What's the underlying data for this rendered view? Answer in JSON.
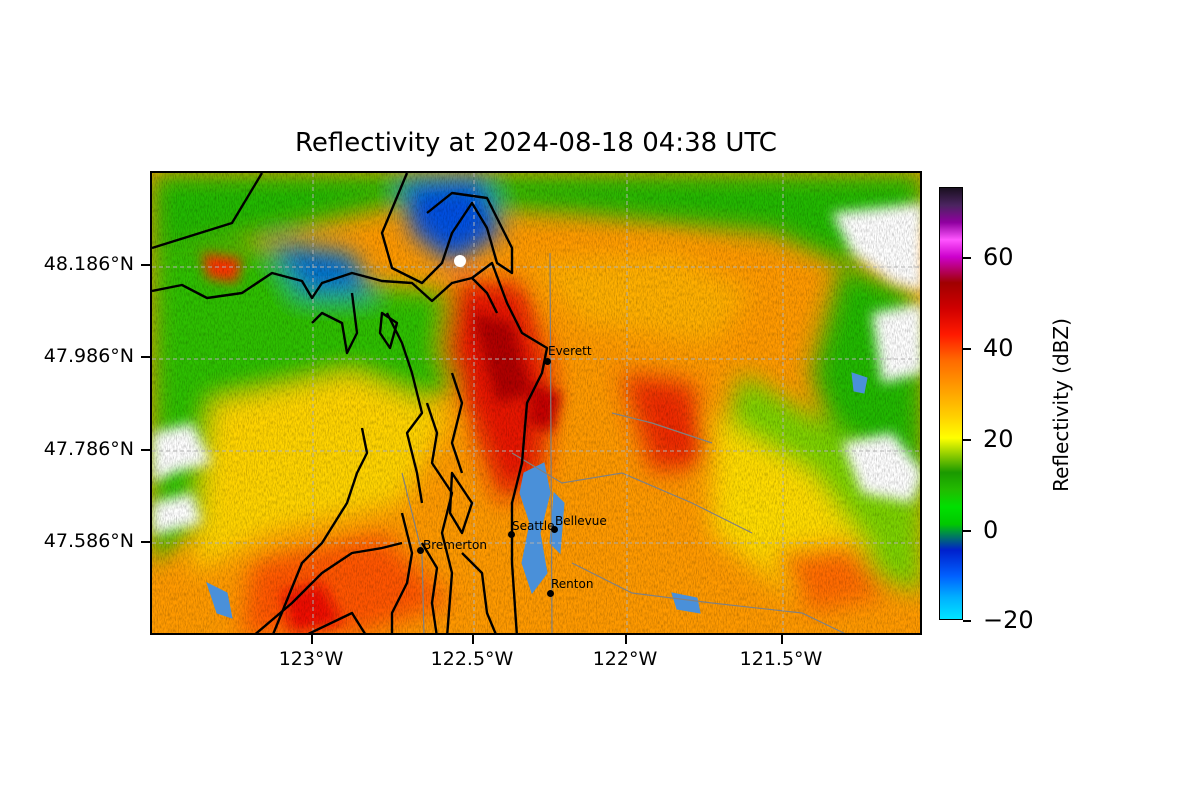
{
  "title": "Reflectivity at 2024-08-18 04:38 UTC",
  "map": {
    "lon_range": [
      -123.54,
      -121.03
    ],
    "lat_range": [
      47.43,
      48.44
    ],
    "y_ticks": [
      {
        "lat": 48.186,
        "label": "48.186°N"
      },
      {
        "lat": 47.986,
        "label": "47.986°N"
      },
      {
        "lat": 47.786,
        "label": "47.786°N"
      },
      {
        "lat": 47.586,
        "label": "47.586°N"
      }
    ],
    "x_ticks": [
      {
        "lon": -123.0,
        "label": "123°W"
      },
      {
        "lon": -122.5,
        "label": "122.5°W"
      },
      {
        "lon": -122.0,
        "label": "122°W"
      },
      {
        "lon": -121.5,
        "label": "121.5°W"
      }
    ],
    "cities": [
      {
        "name": "Everett",
        "lon": -122.21,
        "lat": 47.98
      },
      {
        "name": "Seattle",
        "lon": -122.33,
        "lat": 47.61
      },
      {
        "name": "Bellevue",
        "lon": -122.2,
        "lat": 47.61
      },
      {
        "name": "Bremerton",
        "lon": -122.63,
        "lat": 47.57
      },
      {
        "name": "Renton",
        "lon": -122.2,
        "lat": 47.48
      }
    ],
    "water_color": "#4a90d9",
    "coastline_color": "#000000"
  },
  "colorbar": {
    "label": "Reflectivity (dBZ)",
    "range": [
      -20,
      75
    ],
    "ticks": [
      {
        "value": 60,
        "label": "60"
      },
      {
        "value": 40,
        "label": "40"
      },
      {
        "value": 20,
        "label": "20"
      },
      {
        "value": 0,
        "label": "0"
      },
      {
        "value": -20,
        "label": "−20"
      }
    ]
  }
}
